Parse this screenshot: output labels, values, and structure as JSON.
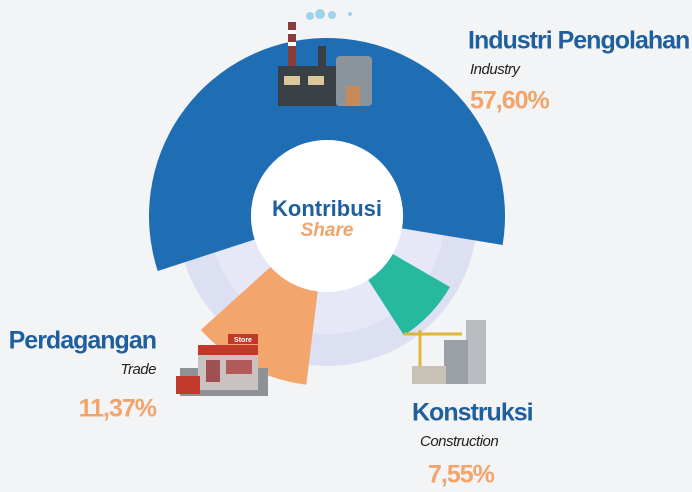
{
  "chart_data": {
    "type": "donut",
    "center_title": "Kontribusi",
    "center_subtitle": "Share",
    "categories": [
      "Industri Pengolahan",
      "Perdagangan",
      "Konstruksi"
    ],
    "translations": [
      "Industry",
      "Trade",
      "Construction"
    ],
    "values": [
      57.6,
      11.37,
      7.55
    ],
    "value_labels": [
      "57,60%",
      "11,37%",
      "7,55%"
    ],
    "colors": [
      "#1f6db3",
      "#f3a56c",
      "#26b9a0"
    ]
  }
}
